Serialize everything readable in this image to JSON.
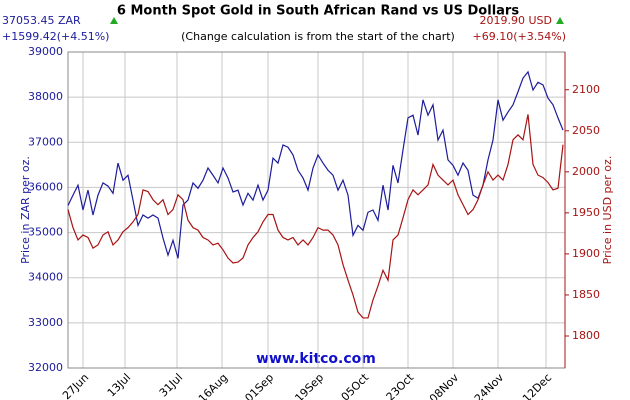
{
  "chart_data": {
    "type": "line",
    "title": "6 Month Spot Gold in South African Rand vs US Dollars",
    "subtitle": "(Change calculation is from the start of the chart)",
    "annotations": [
      "37053.45 ZAR",
      "+1599.42(+4.51%)",
      "2019.90 USD",
      "+69.10(+3.54%)"
    ],
    "source": "www.kitco.com",
    "y_label": "Price in ZAR per oz.",
    "y2_label": "Price in USD per oz.",
    "grid": true,
    "x": [
      0,
      1,
      2,
      3,
      4,
      5,
      6,
      7,
      8,
      9,
      10,
      11,
      12,
      13,
      14,
      15,
      16,
      17,
      18,
      19,
      20,
      21,
      22,
      23,
      24,
      25,
      26,
      27,
      28,
      29,
      30,
      31,
      32,
      33,
      34,
      35,
      36,
      37,
      38,
      39,
      40,
      41,
      42,
      43,
      44,
      45,
      46,
      47,
      48,
      49,
      50,
      51,
      52,
      53,
      54,
      55,
      56,
      57,
      58,
      59,
      60,
      61,
      62,
      63,
      64,
      65,
      66,
      67,
      68,
      69,
      70,
      71,
      72,
      73,
      74,
      75,
      76,
      77,
      78,
      79,
      80,
      81,
      82,
      83,
      84,
      85,
      86,
      87,
      88,
      89,
      90,
      91,
      92,
      93,
      94,
      95,
      96,
      97,
      98,
      99
    ],
    "xlim": [
      0,
      99.4
    ],
    "xticks": [
      {
        "value": 3,
        "label": "27Jun"
      },
      {
        "value": 11.4,
        "label": "13Jul"
      },
      {
        "value": 21.8,
        "label": "31Jul"
      },
      {
        "value": 30.8,
        "label": "16Aug"
      },
      {
        "value": 40,
        "label": "01Sep"
      },
      {
        "value": 50,
        "label": "19Sep"
      },
      {
        "value": 59,
        "label": "05Oct"
      },
      {
        "value": 68,
        "label": "23Oct"
      },
      {
        "value": 77,
        "label": "08Nov"
      },
      {
        "value": 86,
        "label": "24Nov"
      },
      {
        "value": 95.6,
        "label": "12Dec"
      }
    ],
    "ylim": [
      32000,
      39000
    ],
    "yticks": [
      32000,
      33000,
      34000,
      35000,
      36000,
      37000,
      38000,
      39000
    ],
    "y2lim": [
      1761,
      2146
    ],
    "y2ticks": [
      1800,
      1850,
      1900,
      1950,
      2000,
      2050,
      2100
    ],
    "series": [
      {
        "name": "ZAR",
        "color": "#1c1c9c",
        "values": [
          35600,
          35830,
          36050,
          35500,
          35940,
          35390,
          35830,
          36100,
          36030,
          35870,
          36540,
          36160,
          36270,
          35720,
          35160,
          35390,
          35320,
          35390,
          35320,
          34880,
          34500,
          34830,
          34430,
          35610,
          35720,
          36100,
          35980,
          36160,
          36430,
          36270,
          36100,
          36430,
          36210,
          35900,
          35940,
          35610,
          35870,
          35720,
          36050,
          35720,
          35940,
          36650,
          36540,
          36940,
          36890,
          36720,
          36380,
          36210,
          35940,
          36430,
          36720,
          36540,
          36380,
          36270,
          35940,
          36160,
          35830,
          34940,
          35160,
          35050,
          35450,
          35500,
          35270,
          36050,
          35500,
          36490,
          36100,
          36830,
          37540,
          37600,
          37160,
          37940,
          37600,
          37830,
          37050,
          37270,
          36610,
          36490,
          36270,
          36540,
          36380,
          35830,
          35760,
          36050,
          36610,
          37050,
          37940,
          37490,
          37670,
          37830,
          38120,
          38420,
          38560,
          38160,
          38330,
          38270,
          37980,
          37830,
          37540,
          37270
        ]
      },
      {
        "name": "USD",
        "color": "#a81414",
        "axis": "y2",
        "values": [
          1954,
          1932,
          1917,
          1923,
          1920,
          1907,
          1911,
          1923,
          1927,
          1911,
          1917,
          1927,
          1932,
          1939,
          1948,
          1978,
          1976,
          1966,
          1960,
          1966,
          1948,
          1954,
          1972,
          1966,
          1941,
          1932,
          1929,
          1920,
          1917,
          1911,
          1913,
          1905,
          1895,
          1889,
          1890,
          1895,
          1911,
          1920,
          1927,
          1939,
          1948,
          1948,
          1929,
          1920,
          1917,
          1920,
          1911,
          1917,
          1911,
          1920,
          1932,
          1929,
          1929,
          1923,
          1911,
          1887,
          1868,
          1850,
          1829,
          1822,
          1822,
          1844,
          1861,
          1880,
          1868,
          1917,
          1923,
          1944,
          1966,
          1978,
          1972,
          1978,
          1984,
          2009,
          1996,
          1990,
          1984,
          1990,
          1972,
          1960,
          1948,
          1954,
          1966,
          1984,
          2000,
          1990,
          1996,
          1990,
          2009,
          2039,
          2045,
          2039,
          2070,
          2009,
          1996,
          1993,
          1987,
          1978,
          1980,
          2033
        ]
      }
    ]
  }
}
